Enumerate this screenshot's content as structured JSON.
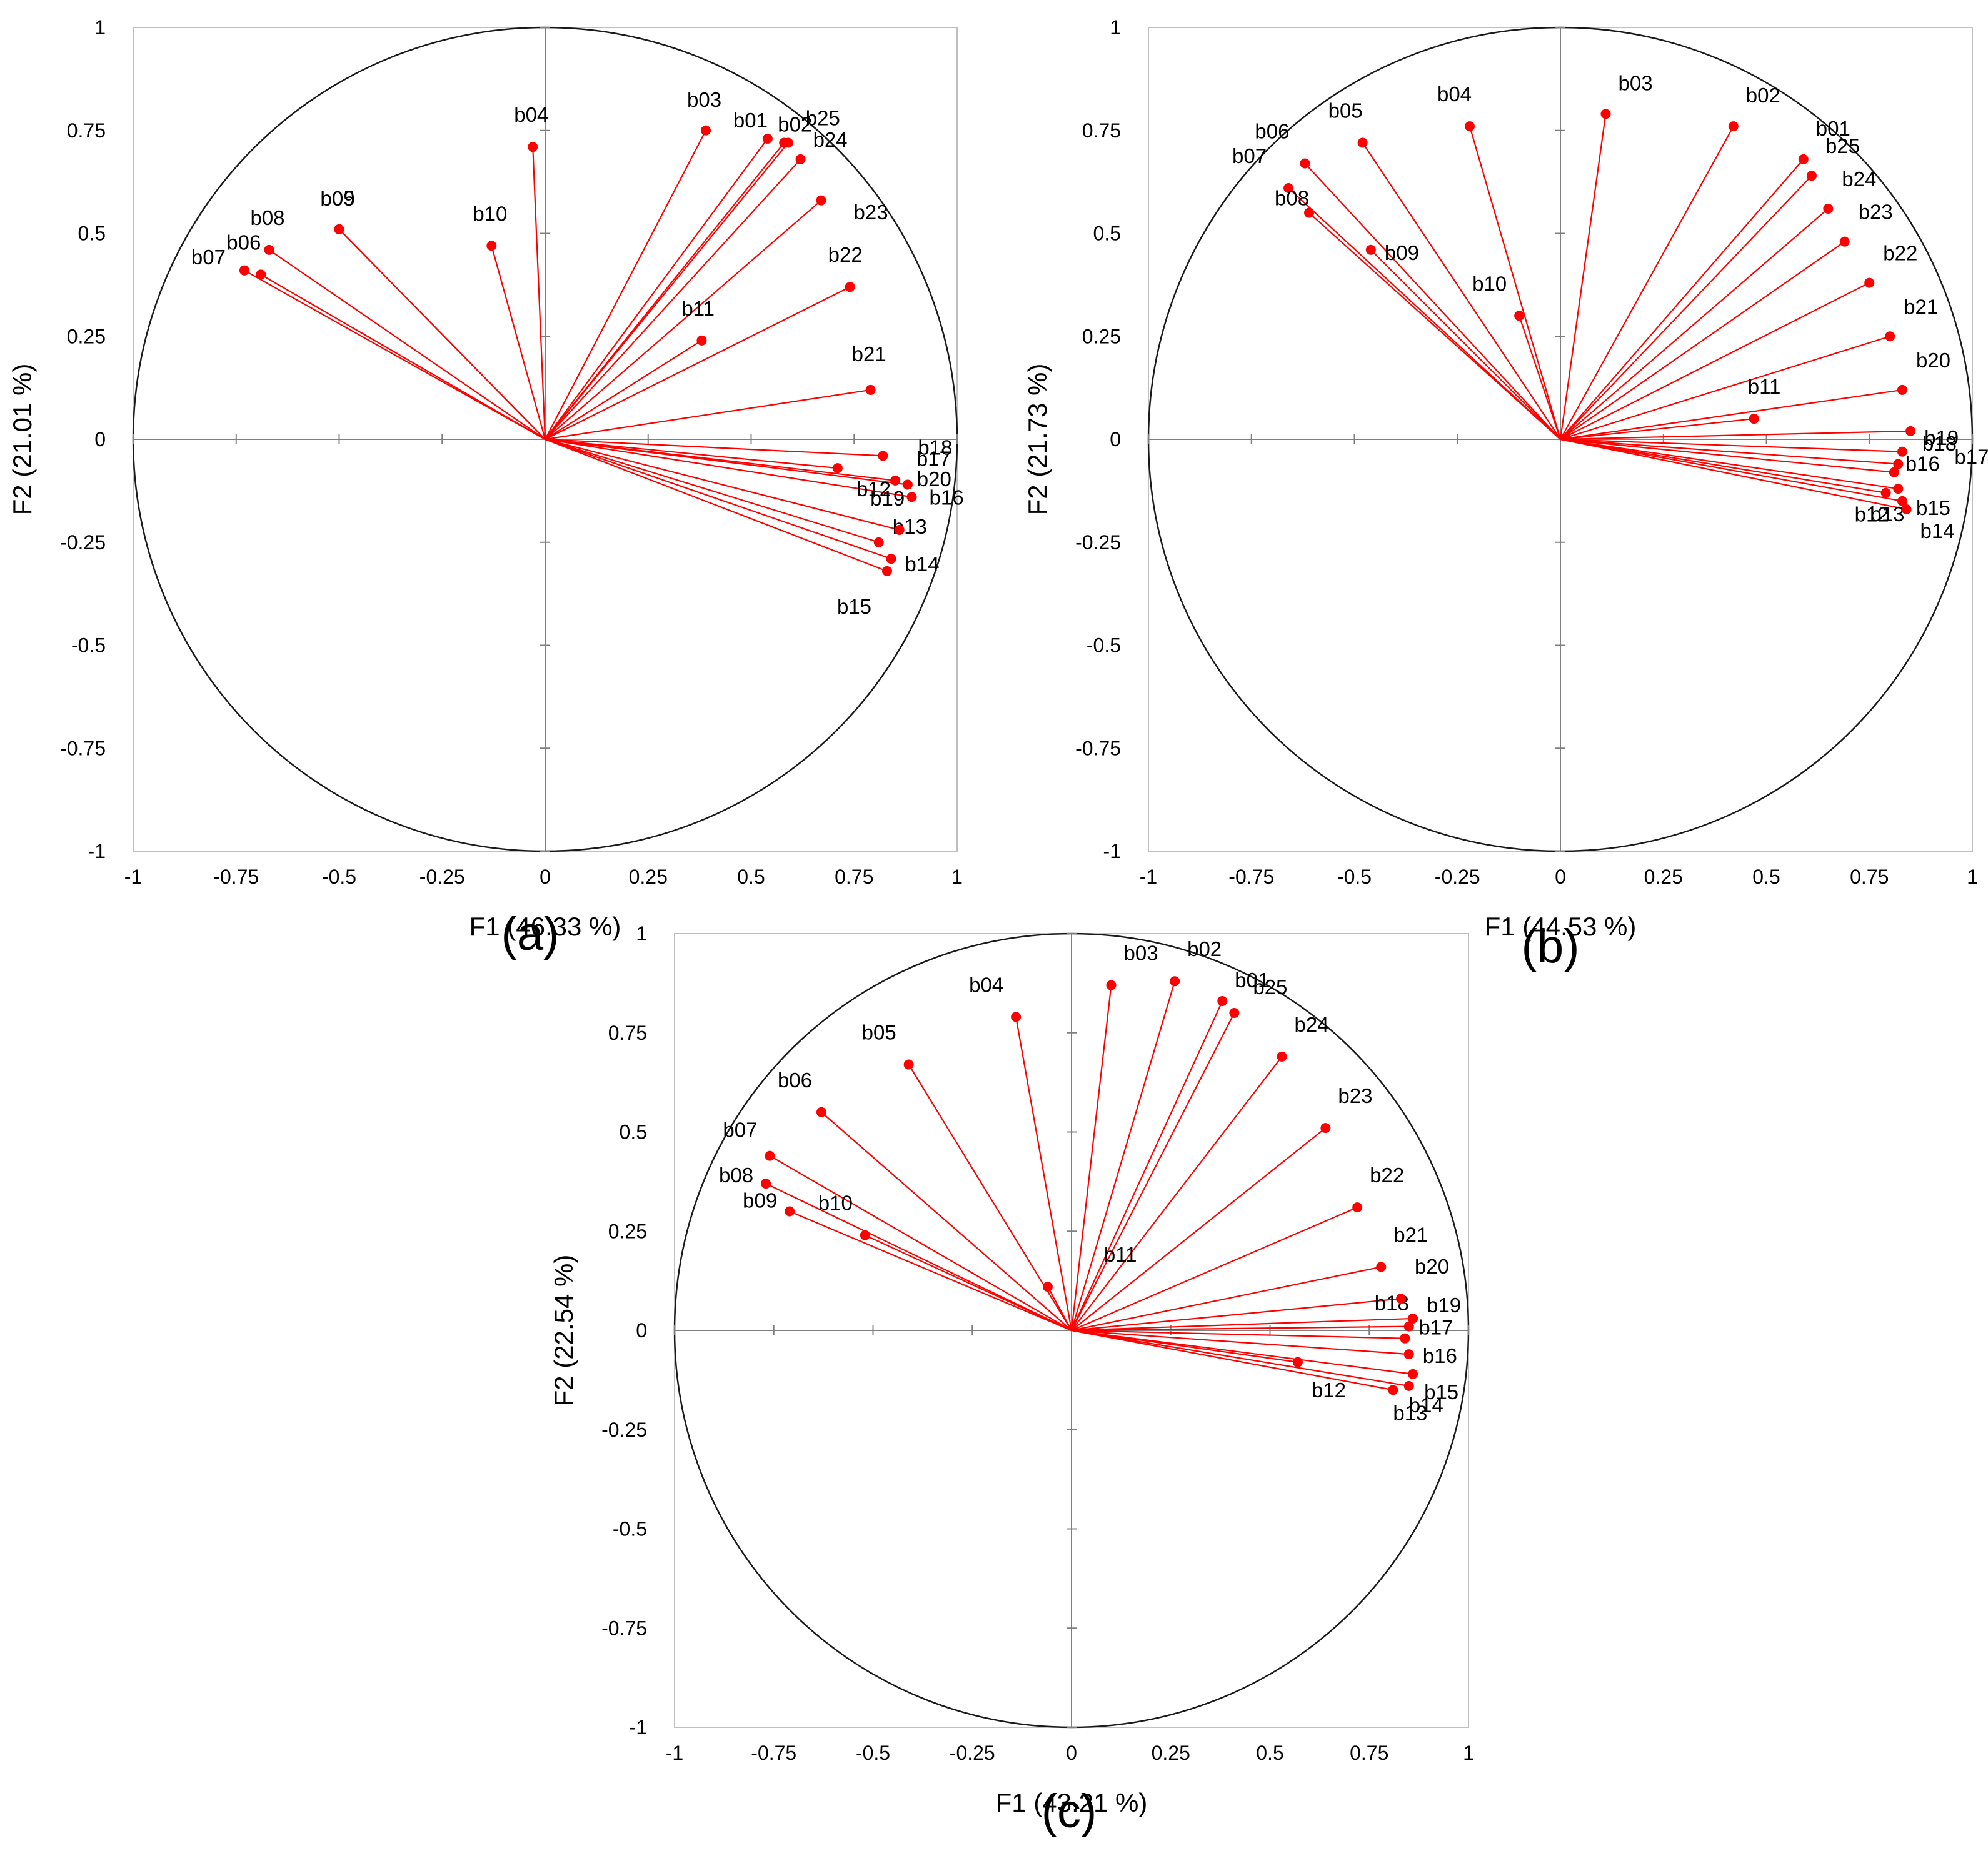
{
  "chart_data": [
    {
      "panel": "(a)",
      "type": "scatter",
      "title": "",
      "xlabel": "F1 (46.33 %)",
      "ylabel": "F2 (21.01 %)",
      "xlim": [
        -1,
        1
      ],
      "ylim": [
        -1,
        1
      ],
      "xticks": [
        "-1",
        "-0.75",
        "-0.5",
        "-0.25",
        "0",
        "0.25",
        "0.5",
        "0.75",
        "1"
      ],
      "yticks": [
        "1",
        "0.75",
        "0.5",
        "0.25",
        "0",
        "-0.25",
        "-0.5",
        "-0.75",
        "-1"
      ],
      "points": [
        {
          "label": "b01",
          "x": 0.54,
          "y": 0.73
        },
        {
          "label": "b02",
          "x": 0.58,
          "y": 0.72
        },
        {
          "label": "b03",
          "x": 0.39,
          "y": 0.75
        },
        {
          "label": "b04",
          "x": -0.03,
          "y": 0.71
        },
        {
          "label": "b05",
          "x": -0.5,
          "y": 0.51
        },
        {
          "label": "b06",
          "x": -0.69,
          "y": 0.4
        },
        {
          "label": "b07",
          "x": -0.73,
          "y": 0.41
        },
        {
          "label": "b08",
          "x": -0.67,
          "y": 0.46
        },
        {
          "label": "b09",
          "x": -0.5,
          "y": 0.51
        },
        {
          "label": "b10",
          "x": -0.13,
          "y": 0.47
        },
        {
          "label": "b11",
          "x": 0.38,
          "y": 0.24
        },
        {
          "label": "b12",
          "x": 0.71,
          "y": -0.07
        },
        {
          "label": "b13",
          "x": 0.81,
          "y": -0.25
        },
        {
          "label": "b14",
          "x": 0.84,
          "y": -0.29
        },
        {
          "label": "b15",
          "x": 0.83,
          "y": -0.32
        },
        {
          "label": "b16",
          "x": 0.89,
          "y": -0.14
        },
        {
          "label": "b17",
          "x": 0.88,
          "y": -0.11
        },
        {
          "label": "b18",
          "x": 0.82,
          "y": -0.04
        },
        {
          "label": "b19",
          "x": 0.85,
          "y": -0.1
        },
        {
          "label": "b20",
          "x": 0.86,
          "y": -0.22
        },
        {
          "label": "b21",
          "x": 0.79,
          "y": 0.12
        },
        {
          "label": "b22",
          "x": 0.74,
          "y": 0.37
        },
        {
          "label": "b23",
          "x": 0.67,
          "y": 0.58
        },
        {
          "label": "b24",
          "x": 0.62,
          "y": 0.68
        },
        {
          "label": "b25",
          "x": 0.59,
          "y": 0.72
        }
      ],
      "labels_text": [
        "b01",
        "b02",
        "b03",
        "b04",
        "b09",
        "b05",
        "b06",
        "b07",
        "b08",
        "b10",
        "b11",
        "b12",
        "b13",
        "b14",
        "b15",
        "b16",
        "b17",
        "b18",
        "b19",
        "b20",
        "b21",
        "b22",
        "b23",
        "b24",
        "b25"
      ]
    },
    {
      "panel": "(b)",
      "type": "scatter",
      "title": "",
      "xlabel": "F1 (44.53 %)",
      "ylabel": "F2 (21.73 %)",
      "xlim": [
        -1,
        1
      ],
      "ylim": [
        -1,
        1
      ],
      "xticks": [
        "-1",
        "-0.75",
        "-0.5",
        "-0.25",
        "0",
        "0.25",
        "0.5",
        "0.75",
        "1"
      ],
      "yticks": [
        "1",
        "0.75",
        "0.5",
        "0.25",
        "0",
        "-0.25",
        "-0.5",
        "-0.75",
        "-1"
      ],
      "points": [
        {
          "label": "b01",
          "x": 0.59,
          "y": 0.68
        },
        {
          "label": "b02",
          "x": 0.42,
          "y": 0.76
        },
        {
          "label": "b03",
          "x": 0.11,
          "y": 0.79
        },
        {
          "label": "b04",
          "x": -0.22,
          "y": 0.76
        },
        {
          "label": "b05",
          "x": -0.48,
          "y": 0.72
        },
        {
          "label": "b06",
          "x": -0.62,
          "y": 0.67
        },
        {
          "label": "b07",
          "x": -0.66,
          "y": 0.61
        },
        {
          "label": "b08",
          "x": -0.61,
          "y": 0.55
        },
        {
          "label": "b09",
          "x": -0.46,
          "y": 0.46
        },
        {
          "label": "b10",
          "x": -0.1,
          "y": 0.3
        },
        {
          "label": "b11",
          "x": 0.47,
          "y": 0.05
        },
        {
          "label": "b12",
          "x": 0.79,
          "y": -0.13
        },
        {
          "label": "b13",
          "x": 0.82,
          "y": -0.12
        },
        {
          "label": "b14",
          "x": 0.84,
          "y": -0.17
        },
        {
          "label": "b15",
          "x": 0.83,
          "y": -0.15
        },
        {
          "label": "b16",
          "x": 0.81,
          "y": -0.08
        },
        {
          "label": "b17",
          "x": 0.82,
          "y": -0.06
        },
        {
          "label": "b18",
          "x": 0.83,
          "y": -0.03
        },
        {
          "label": "b19",
          "x": 0.85,
          "y": 0.02
        },
        {
          "label": "b20",
          "x": 0.83,
          "y": 0.12
        },
        {
          "label": "b21",
          "x": 0.8,
          "y": 0.25
        },
        {
          "label": "b22",
          "x": 0.75,
          "y": 0.38
        },
        {
          "label": "b23",
          "x": 0.69,
          "y": 0.48
        },
        {
          "label": "b24",
          "x": 0.65,
          "y": 0.56
        },
        {
          "label": "b25",
          "x": 0.61,
          "y": 0.64
        }
      ],
      "labels_text": [
        "b01",
        "b02",
        "b03",
        "b04",
        "b05",
        "b06",
        "b07",
        "b08",
        "b09",
        "b10",
        "b11",
        "b12",
        "b13",
        "b14",
        "b15",
        "b16",
        "b17",
        "b18",
        "b19",
        "b20",
        "b21",
        "b22",
        "b23",
        "b24",
        "b25"
      ]
    },
    {
      "panel": "(c)",
      "type": "scatter",
      "title": "",
      "xlabel": "F1 (43.21 %)",
      "ylabel": "F2 (22.54 %)",
      "xlim": [
        -1,
        1
      ],
      "ylim": [
        -1,
        1
      ],
      "xticks": [
        "-1",
        "-0.75",
        "-0.5",
        "-0.25",
        "0",
        "0.25",
        "0.5",
        "0.75",
        "1"
      ],
      "yticks": [
        "1",
        "0.75",
        "0.5",
        "0.25",
        "0",
        "-0.25",
        "-0.5",
        "-0.75",
        "-1"
      ],
      "points": [
        {
          "label": "b01",
          "x": 0.38,
          "y": 0.83
        },
        {
          "label": "b02",
          "x": 0.26,
          "y": 0.88
        },
        {
          "label": "b03",
          "x": 0.1,
          "y": 0.87
        },
        {
          "label": "b04",
          "x": -0.14,
          "y": 0.79
        },
        {
          "label": "b05",
          "x": -0.41,
          "y": 0.67
        },
        {
          "label": "b06",
          "x": -0.63,
          "y": 0.55
        },
        {
          "label": "b07",
          "x": -0.76,
          "y": 0.44
        },
        {
          "label": "b08",
          "x": -0.77,
          "y": 0.37
        },
        {
          "label": "b09",
          "x": -0.71,
          "y": 0.3
        },
        {
          "label": "b10",
          "x": -0.52,
          "y": 0.24
        },
        {
          "label": "b11",
          "x": -0.06,
          "y": 0.11
        },
        {
          "label": "b12",
          "x": 0.57,
          "y": -0.08
        },
        {
          "label": "b13",
          "x": 0.81,
          "y": -0.15
        },
        {
          "label": "b14",
          "x": 0.85,
          "y": -0.14
        },
        {
          "label": "b15",
          "x": 0.86,
          "y": -0.11
        },
        {
          "label": "b16",
          "x": 0.85,
          "y": -0.06
        },
        {
          "label": "b17",
          "x": 0.84,
          "y": -0.02
        },
        {
          "label": "b18",
          "x": 0.85,
          "y": 0.01
        },
        {
          "label": "b19",
          "x": 0.86,
          "y": 0.03
        },
        {
          "label": "b20",
          "x": 0.83,
          "y": 0.08
        },
        {
          "label": "b21",
          "x": 0.78,
          "y": 0.16
        },
        {
          "label": "b22",
          "x": 0.72,
          "y": 0.31
        },
        {
          "label": "b23",
          "x": 0.64,
          "y": 0.51
        },
        {
          "label": "b24",
          "x": 0.53,
          "y": 0.69
        },
        {
          "label": "b25",
          "x": 0.41,
          "y": 0.8
        }
      ],
      "labels_text": [
        "b01",
        "b02",
        "b03",
        "b04",
        "b05",
        "b06",
        "b07",
        "b08",
        "b09",
        "b10",
        "b11",
        "b12",
        "b13",
        "b14",
        "b15",
        "b16",
        "b17",
        "b18",
        "b19",
        "b20",
        "b21",
        "b22",
        "b23",
        "b24",
        "b25"
      ]
    }
  ]
}
